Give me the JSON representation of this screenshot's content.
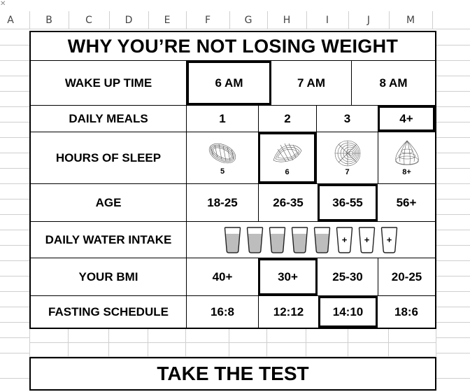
{
  "sheet": {
    "columns": [
      "A",
      "B",
      "C",
      "D",
      "E",
      "F",
      "G",
      "H",
      "I",
      "J",
      "M"
    ]
  },
  "title": "WHY YOU’RE NOT LOSING WEIGHT",
  "rows": {
    "wake_up": {
      "label": "WAKE UP TIME",
      "options": [
        "6 AM",
        "7 AM",
        "8 AM"
      ],
      "selected": "6 AM"
    },
    "meals": {
      "label": "DAILY MEALS",
      "options": [
        "1",
        "2",
        "3",
        "4+"
      ],
      "selected": "4+"
    },
    "sleep": {
      "label": "HOURS OF SLEEP",
      "options": [
        "5",
        "6",
        "7",
        "8+"
      ],
      "selected": "6"
    },
    "age": {
      "label": "AGE",
      "options": [
        "18-25",
        "26-35",
        "36-55",
        "56+"
      ],
      "selected": "36-55"
    },
    "water": {
      "label": "DAILY WATER INTAKE",
      "filled_glasses": 5,
      "empty_glass_symbol": "+",
      "total_glasses": 8
    },
    "bmi": {
      "label": "YOUR BMI",
      "options": [
        "40+",
        "30+",
        "25-30",
        "20-25"
      ],
      "selected": "30+"
    },
    "fasting": {
      "label": "FASTING SCHEDULE",
      "options": [
        "16:8",
        "12:12",
        "14:10",
        "18:6"
      ],
      "selected": "14:10"
    }
  },
  "cta": "TAKE THE TEST"
}
